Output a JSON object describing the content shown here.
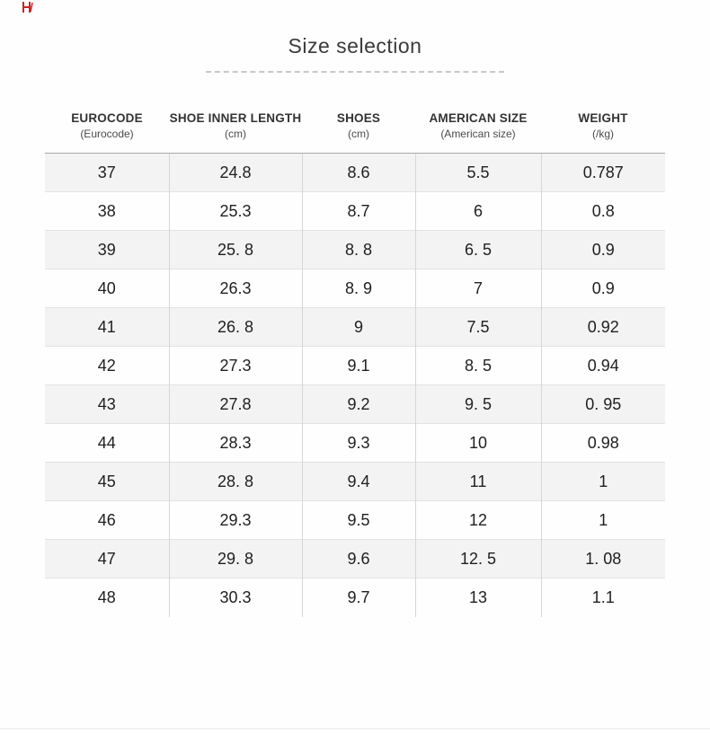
{
  "page": {
    "title": "Size selection"
  },
  "accent_color": "#cc2222",
  "table": {
    "columns": [
      {
        "label": "EUROCODE",
        "sub": "(Eurocode)"
      },
      {
        "label": "SHOE INNER LENGTH",
        "sub": "(cm)"
      },
      {
        "label": "SHOES",
        "sub": "(cm)"
      },
      {
        "label": "AMERICAN SIZE",
        "sub": "(American size)"
      },
      {
        "label": "WEIGHT",
        "sub": "(/kg)"
      }
    ],
    "rows": [
      [
        "37",
        "24.8",
        "8.6",
        "5.5",
        "0.787"
      ],
      [
        "38",
        "25.3",
        "8.7",
        "6",
        "0.8"
      ],
      [
        "39",
        "25. 8",
        "8. 8",
        "6. 5",
        "0.9"
      ],
      [
        "40",
        "26.3",
        "8. 9",
        "7",
        "0.9"
      ],
      [
        "41",
        "26. 8",
        "9",
        "7.5",
        "0.92"
      ],
      [
        "42",
        "27.3",
        "9.1",
        "8. 5",
        "0.94"
      ],
      [
        "43",
        "27.8",
        "9.2",
        "9. 5",
        "0. 95"
      ],
      [
        "44",
        "28.3",
        "9.3",
        "10",
        "0.98"
      ],
      [
        "45",
        "28. 8",
        "9.4",
        "11",
        "1"
      ],
      [
        "46",
        "29.3",
        "9.5",
        "12",
        "1"
      ],
      [
        "47",
        "29. 8",
        "9.6",
        "12. 5",
        "1. 08"
      ],
      [
        "48",
        "30.3",
        "9.7",
        "13",
        "1.1"
      ]
    ]
  }
}
